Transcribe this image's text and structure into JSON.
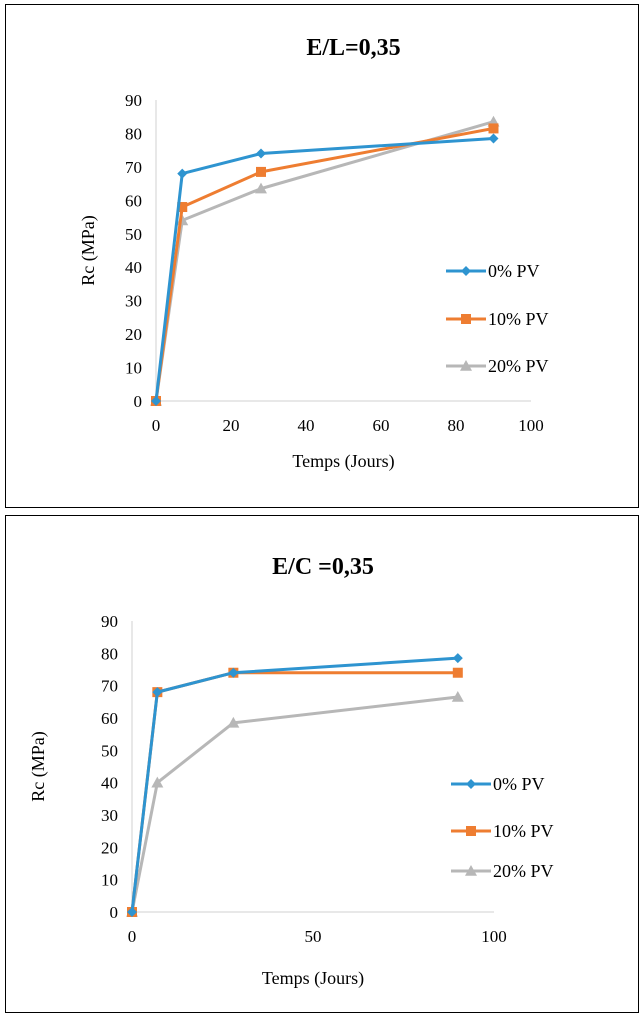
{
  "chart_data": [
    {
      "type": "line",
      "title": "E/L=0,35",
      "xlabel": "Temps (Jours)",
      "ylabel": "Rc (MPa)",
      "xlim": [
        0,
        100
      ],
      "ylim": [
        0,
        90
      ],
      "xticks": [
        "0",
        "20",
        "40",
        "60",
        "80",
        "100"
      ],
      "yticks": [
        "0",
        "10",
        "20",
        "30",
        "40",
        "50",
        "60",
        "70",
        "80",
        "90"
      ],
      "grid": false,
      "legend": "right",
      "series": [
        {
          "name": "0% PV",
          "color": "#2e94d0",
          "marker": "diamond",
          "x": [
            0,
            7,
            28,
            90
          ],
          "y": [
            0,
            68,
            74,
            78.5
          ]
        },
        {
          "name": "10% PV",
          "color": "#ee7d31",
          "marker": "square",
          "x": [
            0,
            7,
            28,
            90
          ],
          "y": [
            0,
            58,
            68.5,
            81.5
          ]
        },
        {
          "name": "20% PV",
          "color": "#b7b7b7",
          "marker": "triangle",
          "x": [
            0,
            7,
            28,
            90
          ],
          "y": [
            0,
            54,
            63.5,
            83.5
          ]
        }
      ]
    },
    {
      "type": "line",
      "title": "E/C =0,35",
      "xlabel": "Temps (Jours)",
      "ylabel": "Rc (MPa)",
      "xlim": [
        0,
        100
      ],
      "ylim": [
        0,
        90
      ],
      "xticks": [
        "0",
        "50",
        "100"
      ],
      "yticks": [
        "0",
        "10",
        "20",
        "30",
        "40",
        "50",
        "60",
        "70",
        "80",
        "90"
      ],
      "grid": false,
      "legend": "right",
      "series": [
        {
          "name": "0% PV",
          "color": "#2e94d0",
          "marker": "diamond",
          "x": [
            0,
            7,
            28,
            90
          ],
          "y": [
            0,
            68,
            74,
            78.5
          ]
        },
        {
          "name": "10% PV",
          "color": "#ee7d31",
          "marker": "square",
          "x": [
            0,
            7,
            28,
            90
          ],
          "y": [
            0,
            68,
            74,
            74
          ]
        },
        {
          "name": "20% PV",
          "color": "#b7b7b7",
          "marker": "triangle",
          "x": [
            0,
            7,
            28,
            90
          ],
          "y": [
            0,
            40,
            58.5,
            66.5
          ]
        }
      ]
    }
  ]
}
